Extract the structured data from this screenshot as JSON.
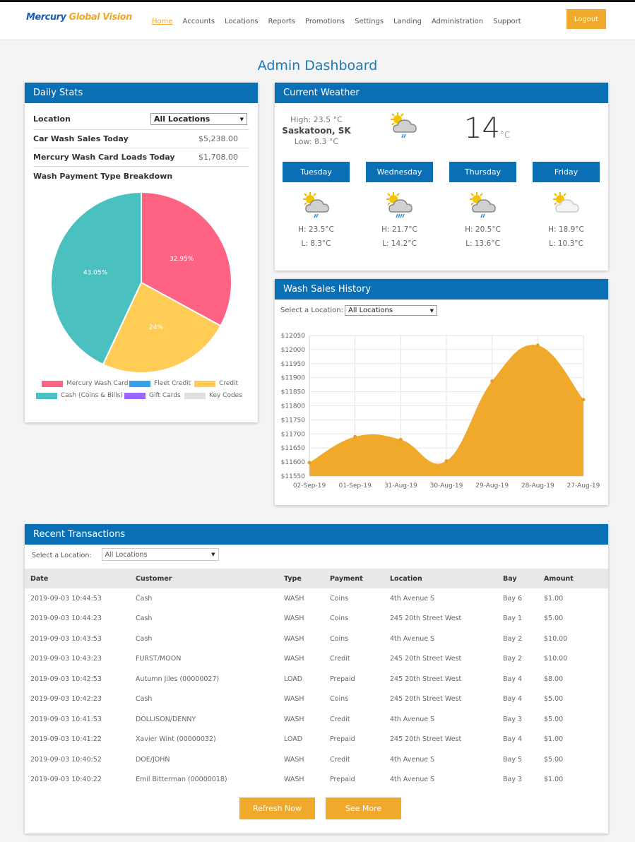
{
  "brand": {
    "part1": "Mercury",
    "part2": "Global Vision"
  },
  "nav": {
    "items": [
      "Home",
      "Accounts",
      "Locations",
      "Reports",
      "Promotions",
      "Settings",
      "Landing",
      "Administration",
      "Support"
    ],
    "logout": "Logout"
  },
  "page_title": "Admin Dashboard",
  "daily": {
    "title": "Daily Stats",
    "location_label": "Location",
    "location_value": "All Locations",
    "sales_label": "Car Wash Sales Today",
    "sales_value": "$5,238.00",
    "loads_label": "Mercury Wash Card Loads Today",
    "loads_value": "$1,708.00",
    "breakdown_label": "Wash Payment Type Breakdown"
  },
  "pie": {
    "type": "pie",
    "slices": [
      {
        "name": "Mercury Wash Card",
        "value": 32.95,
        "label": "32.95%",
        "color": "#ff6384"
      },
      {
        "name": "Credit",
        "value": 24,
        "label": "24%",
        "color": "#ffcd56"
      },
      {
        "name": "Cash (Coins & Bills)",
        "value": 43.05,
        "label": "43.05%",
        "color": "#4bc0c0"
      }
    ],
    "legend": [
      {
        "name": "Mercury Wash Card",
        "color": "#ff6384"
      },
      {
        "name": "Fleet Credit",
        "color": "#36a2eb"
      },
      {
        "name": "Credit",
        "color": "#ffcd56"
      },
      {
        "name": "Cash (Coins & Bills)",
        "color": "#4bc0c0"
      },
      {
        "name": "Gift Cards",
        "color": "#9966ff"
      },
      {
        "name": "Key Codes",
        "color": "#e0e0e0"
      }
    ]
  },
  "weather": {
    "title": "Current Weather",
    "high": "High: 23.5 °C",
    "city": "Saskatoon, SK",
    "low": "Low: 8.3 °C",
    "temp": "14",
    "unit": "°C",
    "icon": "sun-cloud-rain-icon",
    "days": [
      {
        "name": "Tuesday",
        "h": "H: 23.5°C",
        "l": "L: 8.3°C",
        "icon": "sun-cloud-rain-icon"
      },
      {
        "name": "Wednesday",
        "h": "H: 21.7°C",
        "l": "L: 14.2°C",
        "icon": "sun-cloud-heavy-rain-icon"
      },
      {
        "name": "Thursday",
        "h": "H: 20.5°C",
        "l": "L: 13.6°C",
        "icon": "sun-cloud-rain-icon"
      },
      {
        "name": "Friday",
        "h": "H: 18.9°C",
        "l": "L: 10.3°C",
        "icon": "sun-cloud-icon"
      }
    ]
  },
  "history": {
    "title": "Wash Sales History",
    "select_label": "Select a Location:",
    "select_value": "All Locations"
  },
  "chart_data": {
    "type": "area",
    "categories": [
      "02-Sep-19",
      "01-Sep-19",
      "31-Aug-19",
      "30-Aug-19",
      "29-Aug-19",
      "28-Aug-19",
      "27-Aug-19"
    ],
    "values": [
      11598,
      11690,
      11680,
      11604,
      11888,
      12015,
      11822
    ],
    "ylim": [
      11550,
      12050
    ],
    "yticks": [
      "$12050",
      "$12000",
      "$11950",
      "$11900",
      "$11850",
      "$11800",
      "$11750",
      "$11700",
      "$11650",
      "$11600",
      "$11550"
    ],
    "color": "#f0a92b",
    "grid": true
  },
  "transactions": {
    "title": "Recent Transactions",
    "select_label": "Select a Location:",
    "select_value": "All Locations",
    "columns": [
      "Date",
      "Customer",
      "Type",
      "Payment",
      "Location",
      "Bay",
      "Amount"
    ],
    "rows": [
      [
        "2019-09-03 10:44:53",
        "Cash",
        "WASH",
        "Coins",
        "4th Avenue S",
        "Bay 6",
        "$1.00"
      ],
      [
        "2019-09-03 10:44:23",
        "Cash",
        "WASH",
        "Coins",
        "245 20th Street West",
        "Bay 1",
        "$5.00"
      ],
      [
        "2019-09-03 10:43:53",
        "Cash",
        "WASH",
        "Coins",
        "4th Avenue S",
        "Bay 2",
        "$10.00"
      ],
      [
        "2019-09-03 10:43:23",
        "FURST/MOON",
        "WASH",
        "Credit",
        "245 20th Street West",
        "Bay 2",
        "$10.00"
      ],
      [
        "2019-09-03 10:42:53",
        " Autumn Jiles (00000027)",
        "LOAD",
        "Prepaid",
        "245 20th Street West",
        "Bay 4",
        "$8.00"
      ],
      [
        "2019-09-03 10:42:23",
        "Cash",
        "WASH",
        "Coins",
        "245 20th Street West",
        "Bay 4",
        "$5.00"
      ],
      [
        "2019-09-03 10:41:53",
        "DOLLISON/DENNY",
        "WASH",
        "Credit",
        "4th Avenue S",
        "Bay 3",
        "$5.00"
      ],
      [
        "2019-09-03 10:41:22",
        " Xavier Wint (00000032)",
        "LOAD",
        "Prepaid",
        "245 20th Street West",
        "Bay 4",
        "$1.00"
      ],
      [
        "2019-09-03 10:40:52",
        "DOE/JOHN",
        "WASH",
        "Credit",
        "4th Avenue S",
        "Bay 5",
        "$5.00"
      ],
      [
        "2019-09-03 10:40:22",
        " Emil Bitterman (00000018)",
        "WASH",
        "Prepaid",
        "4th Avenue S",
        "Bay 3",
        "$1.00"
      ]
    ],
    "refresh": "Refresh Now",
    "more": "See More"
  }
}
